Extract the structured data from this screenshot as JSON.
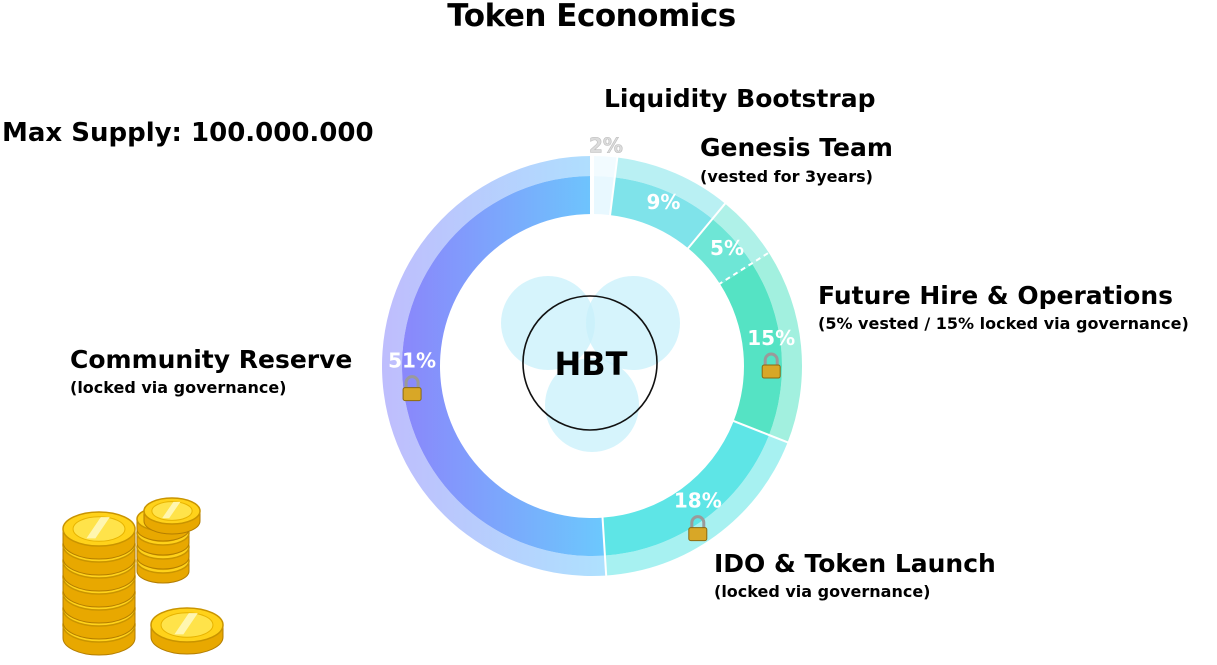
{
  "title": "Token Economics",
  "max_supply": "Max Supply: 100.000.000",
  "center_label": "HBT",
  "chart_data": {
    "type": "donut",
    "title": "Token Economics",
    "center": "HBT",
    "total_supply": 100000000,
    "slices": [
      {
        "name": "Liquidity Bootstrap",
        "value": 2,
        "label": "2%",
        "note": "",
        "locked": false,
        "color": "#e8f8ff"
      },
      {
        "name": "Genesis Team",
        "value": 9,
        "label": "9%",
        "note": "(vested for 3years)",
        "locked": false,
        "color": "#7fe3ea"
      },
      {
        "name": "Future Hire & Operations (vested)",
        "value": 5,
        "label": "5%",
        "note": "",
        "locked": false,
        "color": "#6ee6d6"
      },
      {
        "name": "Future Hire & Operations (locked)",
        "value": 15,
        "label": "15%",
        "note": "",
        "locked": true,
        "color": "#55e3c4"
      },
      {
        "name": "IDO & Token Launch",
        "value": 18,
        "label": "18%",
        "note": "(locked via governance)",
        "locked": true,
        "color": "#5ee5e6"
      },
      {
        "name": "Community Reserve",
        "value": 51,
        "label": "51%",
        "note": "(locked via governance)",
        "locked": true,
        "color": "#8b8cfb"
      }
    ]
  },
  "legend": {
    "liquidity": {
      "name": "Liquidity Bootstrap"
    },
    "genesis": {
      "name": "Genesis Team",
      "note": "(vested for 3years)"
    },
    "future": {
      "name": "Future Hire & Operations",
      "note": "(5% vested / 15% locked via governance)"
    },
    "ido": {
      "name": "IDO & Token Launch",
      "note": "(locked via governance)"
    },
    "community": {
      "name": "Community Reserve",
      "note": "(locked via governance)"
    }
  },
  "icons": {
    "lock": "padlock-icon",
    "coins": "gold-coins-illustration"
  }
}
